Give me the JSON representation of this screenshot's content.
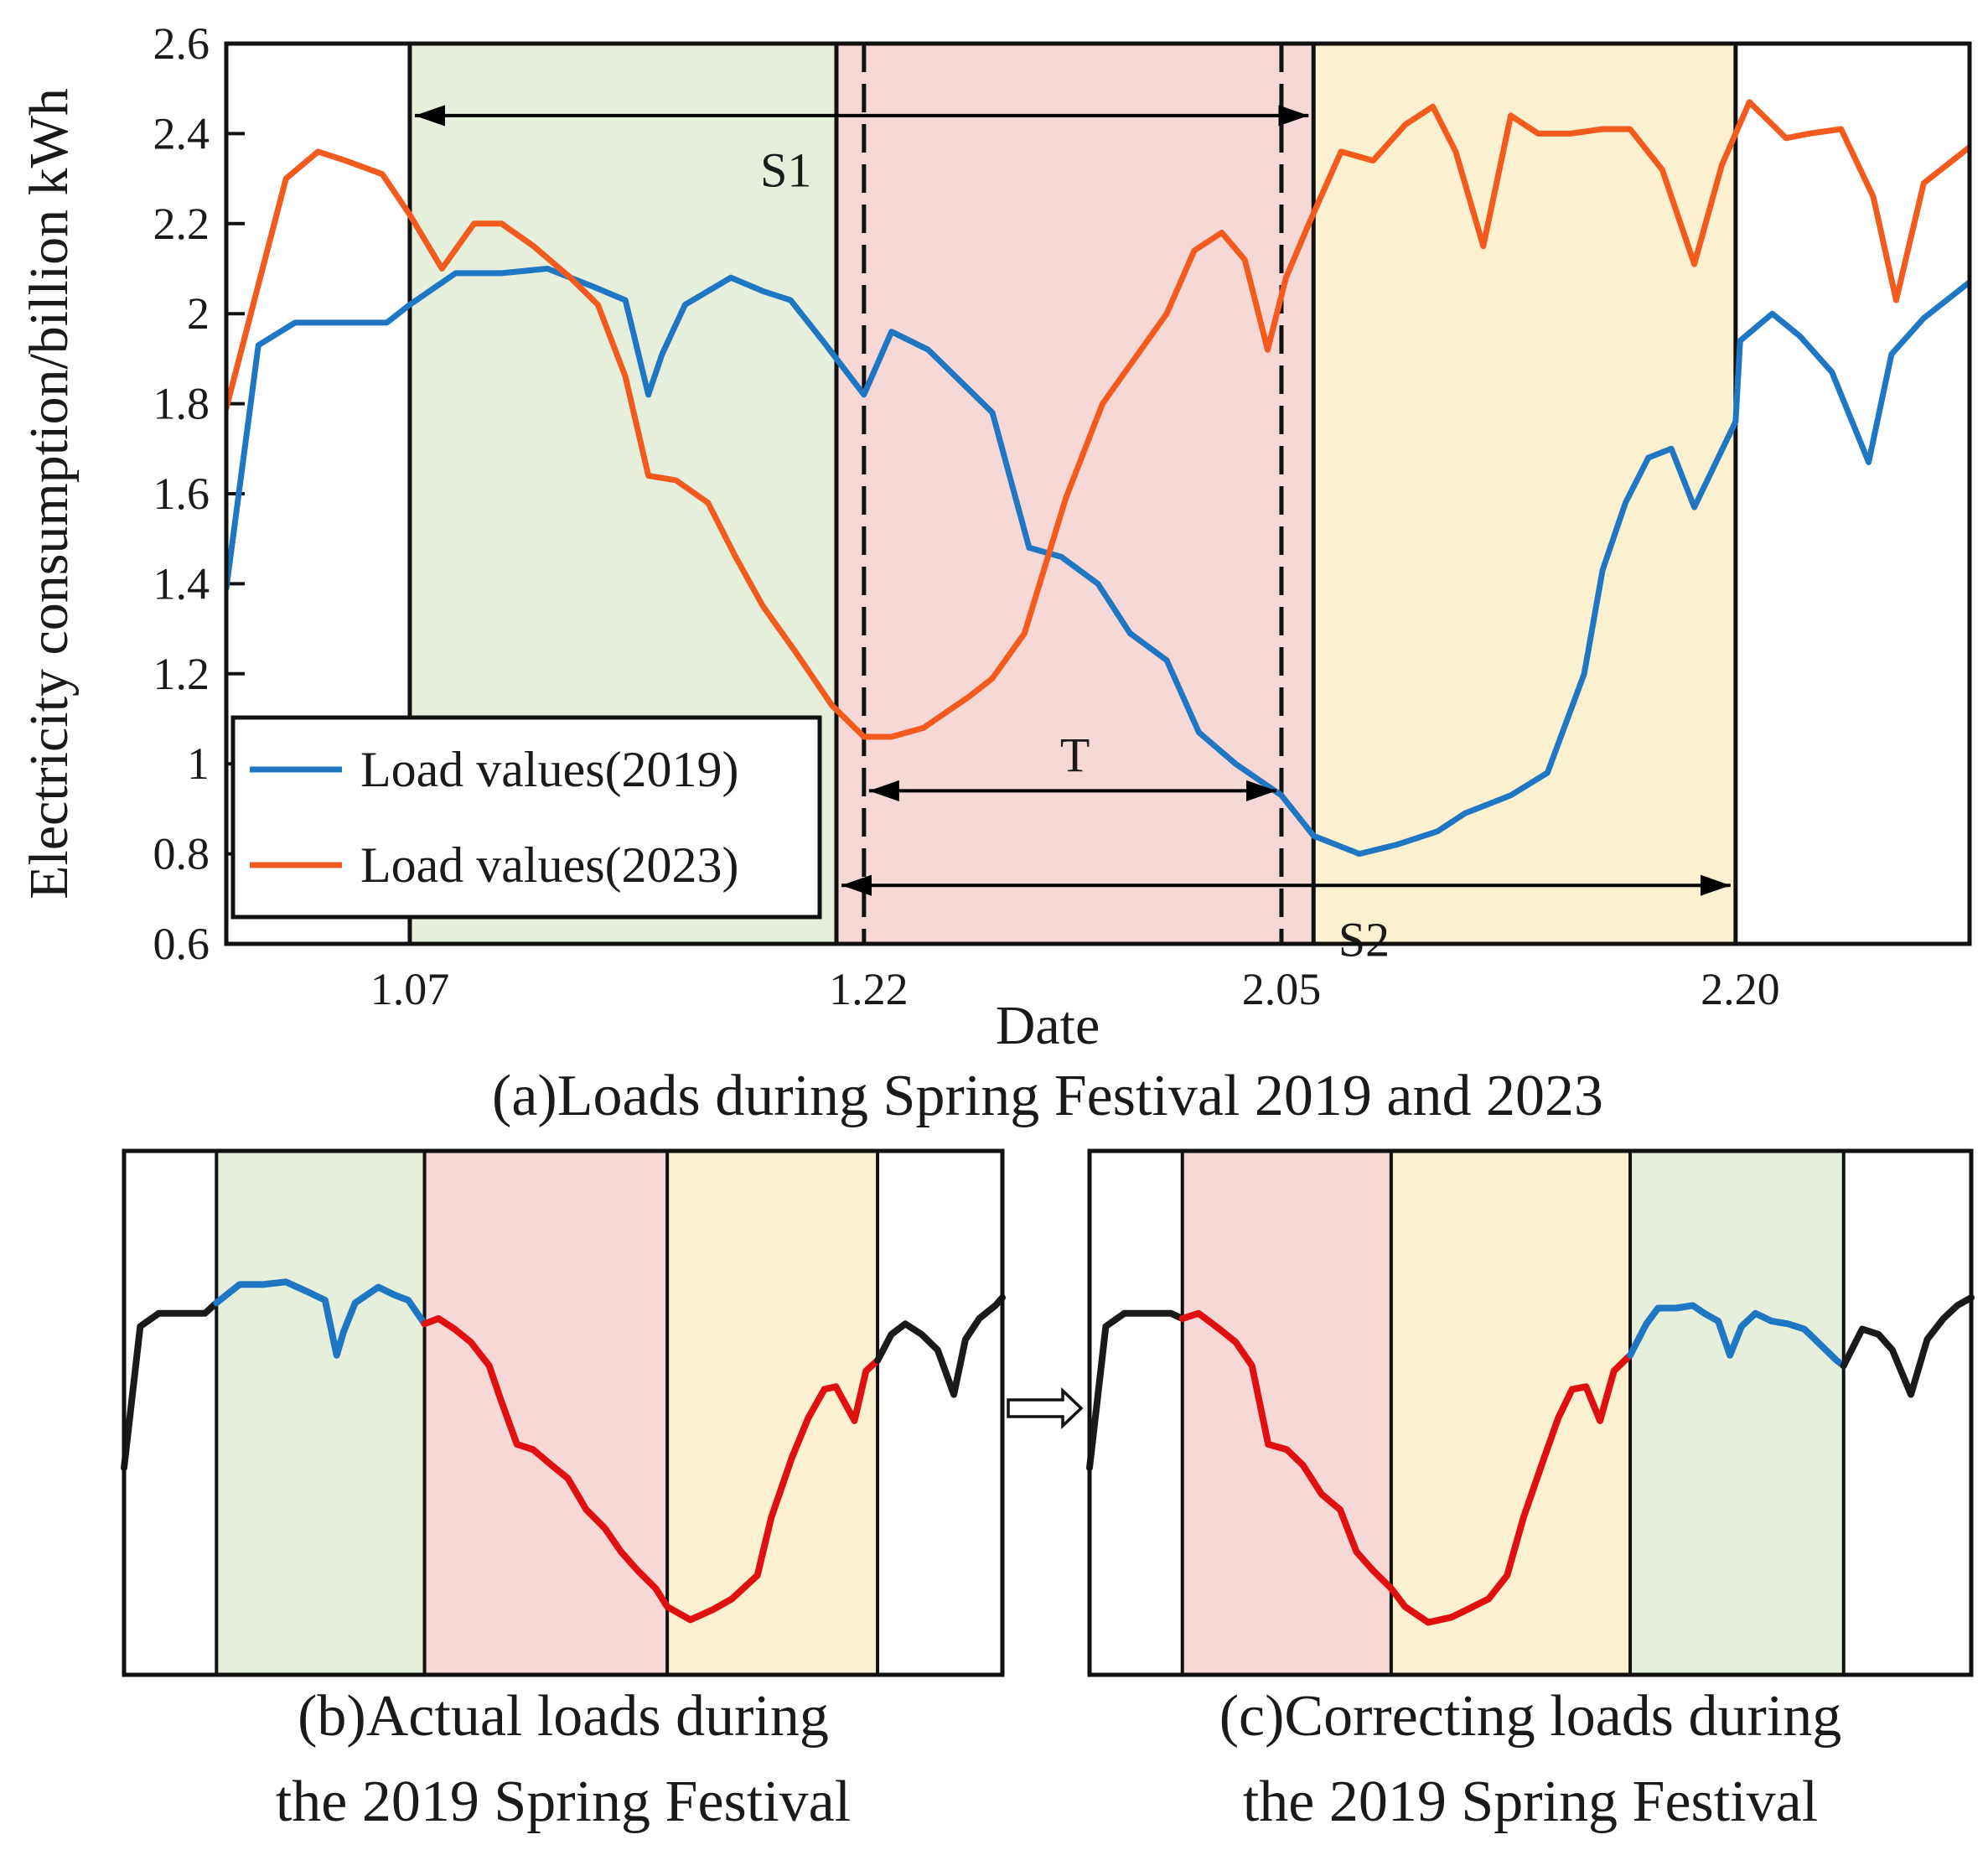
{
  "chart_data": [
    {
      "id": "a",
      "type": "line",
      "caption": "(a)Loads during Spring Festival 2019 and 2023",
      "xlabel": "Date",
      "ylabel": "Electricity consumption/billion kWh",
      "ylim": [
        0.6,
        2.6
      ],
      "yticks": [
        "0.6",
        "0.8",
        "1",
        "1.2",
        "1.4",
        "1.6",
        "1.8",
        "2",
        "2.2",
        "2.4",
        "2.6"
      ],
      "xlim": [
        0,
        38
      ],
      "xticks": [
        {
          "x": 4,
          "label": "1.07"
        },
        {
          "x": 14,
          "label": "1.22"
        },
        {
          "x": 23,
          "label": "2.05"
        },
        {
          "x": 33,
          "label": "2.20"
        }
      ],
      "bands": [
        {
          "x0": 4.0,
          "x1": 13.3,
          "color": "#e6efdc"
        },
        {
          "x0": 13.3,
          "x1": 23.7,
          "color": "#f6d8d6"
        },
        {
          "x0": 23.7,
          "x1": 32.9,
          "color": "#fbf0cf"
        }
      ],
      "solid_lines": [
        4.0,
        13.3,
        23.7,
        32.9
      ],
      "dashed_lines": [
        13.9,
        23.0
      ],
      "annotations": [
        {
          "label": "S1",
          "x0": 4.0,
          "x1": 23.7,
          "y": 2.44,
          "tx": 12.2,
          "ty": 2.32
        },
        {
          "label": "T",
          "x0": 13.9,
          "x1": 23.0,
          "y": 0.94,
          "tx": 18.5,
          "ty": 1.02
        },
        {
          "label": "S2",
          "x0": 13.3,
          "x1": 32.9,
          "y": 0.73,
          "tx": 24.8,
          "ty": 0.61
        }
      ],
      "legend": {
        "position": "bottom-left",
        "entries": [
          "Load values(2019)",
          "Load values(2023)"
        ]
      },
      "series": [
        {
          "name": "Load values(2019)",
          "color": "#1f77c4",
          "x": [
            0,
            0.7,
            1.5,
            2.5,
            3.5,
            4,
            5,
            6,
            7,
            8,
            8.7,
            9.2,
            9.5,
            10,
            11,
            11.7,
            12.3,
            13,
            13.9,
            14.5,
            15.3,
            15.8,
            16.7,
            17.5,
            18.2,
            19,
            19.7,
            20.5,
            21.2,
            22,
            23,
            23.7,
            24.7,
            25.5,
            26.4,
            27,
            28,
            28.8,
            29.6,
            30,
            30.5,
            31,
            31.5,
            32,
            32.9,
            33,
            33.7,
            34.3,
            35,
            35.8,
            36.3,
            37,
            38
          ],
          "values": [
            1.39,
            1.93,
            1.98,
            1.98,
            1.98,
            2.02,
            2.09,
            2.09,
            2.1,
            2.06,
            2.03,
            1.82,
            1.91,
            2.02,
            2.08,
            2.05,
            2.03,
            1.94,
            1.82,
            1.96,
            1.92,
            1.87,
            1.78,
            1.48,
            1.46,
            1.4,
            1.29,
            1.23,
            1.07,
            1.0,
            0.93,
            0.84,
            0.8,
            0.82,
            0.85,
            0.89,
            0.93,
            0.98,
            1.2,
            1.43,
            1.58,
            1.68,
            1.7,
            1.57,
            1.76,
            1.94,
            2.0,
            1.95,
            1.87,
            1.67,
            1.91,
            1.99,
            2.07
          ]
        },
        {
          "name": "Load values(2023)",
          "color": "#f25a1e",
          "x": [
            0,
            1.3,
            2,
            2.6,
            3.4,
            4,
            4.7,
            5.4,
            6,
            6.7,
            7.5,
            8.1,
            8.7,
            9.2,
            9.8,
            10.5,
            11.1,
            11.7,
            12.4,
            13.2,
            13.9,
            14.5,
            15.2,
            16.2,
            16.7,
            17.4,
            18.3,
            19.1,
            19.8,
            20.5,
            21.1,
            21.7,
            22.2,
            22.7,
            23.1,
            23.6,
            24.3,
            25,
            25.7,
            26.3,
            26.8,
            27.4,
            28,
            28.6,
            29.3,
            30,
            30.6,
            31.3,
            32,
            32.6,
            33.2,
            34,
            34.5,
            35.2,
            35.9,
            36.4,
            37,
            38
          ],
          "values": [
            1.79,
            2.3,
            2.36,
            2.34,
            2.31,
            2.22,
            2.1,
            2.2,
            2.2,
            2.15,
            2.08,
            2.02,
            1.86,
            1.64,
            1.63,
            1.58,
            1.46,
            1.35,
            1.25,
            1.13,
            1.06,
            1.06,
            1.08,
            1.15,
            1.19,
            1.29,
            1.59,
            1.8,
            1.9,
            2.0,
            2.14,
            2.18,
            2.12,
            1.92,
            2.08,
            2.2,
            2.36,
            2.34,
            2.42,
            2.46,
            2.36,
            2.15,
            2.44,
            2.4,
            2.4,
            2.41,
            2.41,
            2.32,
            2.11,
            2.33,
            2.47,
            2.39,
            2.4,
            2.41,
            2.26,
            2.03,
            2.29,
            2.37
          ]
        }
      ]
    },
    {
      "id": "b",
      "type": "line",
      "caption_line1": "(b)Actual loads during",
      "caption_line2": "the 2019 Spring Festival",
      "xlim": [
        0,
        38
      ],
      "ylim": [
        0.6,
        2.6
      ],
      "bands": [
        {
          "x0": 4,
          "x1": 13,
          "color": "#e6efdc"
        },
        {
          "x0": 13,
          "x1": 23.5,
          "color": "#f6d8d6"
        },
        {
          "x0": 23.5,
          "x1": 32.6,
          "color": "#fbf0cf"
        }
      ],
      "dividers": [
        4,
        13,
        23.5,
        32.6
      ],
      "segments": [
        {
          "color": "#1a1a1a",
          "x": [
            0,
            0.7,
            1.5,
            2.5,
            3.5,
            4
          ],
          "values": [
            1.39,
            1.93,
            1.98,
            1.98,
            1.98,
            2.02
          ]
        },
        {
          "color": "#1f77c4",
          "x": [
            4,
            5,
            6,
            7,
            8,
            8.7,
            9.2,
            9.5,
            10,
            11,
            11.7,
            12.3,
            13
          ],
          "values": [
            2.02,
            2.09,
            2.09,
            2.1,
            2.06,
            2.03,
            1.82,
            1.91,
            2.02,
            2.08,
            2.05,
            2.03,
            1.94
          ]
        },
        {
          "color": "#e01010",
          "x": [
            13,
            13.6,
            14.3,
            15,
            15.8,
            16.3,
            17,
            17.7,
            18.5,
            19.2,
            20,
            20.8,
            21.5,
            22.2,
            23,
            23.5,
            24.5,
            25.5,
            26.3,
            27.4,
            28,
            28.9,
            29.6,
            30.3,
            30.8,
            31.6,
            32.1,
            32.6
          ],
          "values": [
            1.94,
            1.96,
            1.92,
            1.87,
            1.78,
            1.65,
            1.48,
            1.46,
            1.4,
            1.35,
            1.23,
            1.16,
            1.07,
            1.0,
            0.93,
            0.86,
            0.81,
            0.85,
            0.89,
            0.98,
            1.2,
            1.43,
            1.58,
            1.69,
            1.7,
            1.57,
            1.76,
            1.8
          ]
        },
        {
          "color": "#1a1a1a",
          "x": [
            32.6,
            33.2,
            33.8,
            34.5,
            35.2,
            35.9,
            36.4,
            37,
            37.7,
            38
          ],
          "values": [
            1.8,
            1.9,
            1.94,
            1.9,
            1.84,
            1.67,
            1.88,
            1.96,
            2.01,
            2.04
          ]
        }
      ]
    },
    {
      "id": "c",
      "type": "line",
      "caption_line1": "(c)Correcting loads during",
      "caption_line2": "the 2019 Spring Festival",
      "xlim": [
        0,
        38
      ],
      "ylim": [
        0.6,
        2.6
      ],
      "bands": [
        {
          "x0": 4,
          "x1": 13,
          "color": "#f6d8d6"
        },
        {
          "x0": 13,
          "x1": 23.3,
          "color": "#fbf0cf"
        },
        {
          "x0": 23.3,
          "x1": 32.5,
          "color": "#e6efdc"
        }
      ],
      "dividers": [
        4,
        13,
        23.3,
        32.5
      ],
      "segments": [
        {
          "color": "#1a1a1a",
          "x": [
            0,
            0.7,
            1.5,
            2.5,
            3.5,
            4
          ],
          "values": [
            1.39,
            1.93,
            1.98,
            1.98,
            1.98,
            1.96
          ]
        },
        {
          "color": "#e01010",
          "x": [
            4,
            4.7,
            5.6,
            6.3,
            7,
            7.7,
            8.5,
            9.2,
            10,
            10.8,
            11.5,
            12.2,
            13,
            13.6,
            14.6,
            15.6,
            16.3,
            17.2,
            18,
            18.7,
            19.6,
            20.2,
            20.8,
            21.4,
            22,
            22.6,
            23.3
          ],
          "values": [
            1.96,
            1.98,
            1.92,
            1.87,
            1.78,
            1.48,
            1.46,
            1.4,
            1.29,
            1.23,
            1.07,
            1.0,
            0.93,
            0.86,
            0.8,
            0.82,
            0.85,
            0.89,
            0.98,
            1.2,
            1.43,
            1.58,
            1.69,
            1.7,
            1.57,
            1.76,
            1.82
          ]
        },
        {
          "color": "#1f77c4",
          "x": [
            23.3,
            24,
            24.5,
            25.3,
            26,
            26.5,
            27.1,
            27.6,
            28.1,
            28.7,
            29.4,
            30.1,
            30.8,
            31.5,
            32.2,
            32.5
          ],
          "values": [
            1.82,
            1.94,
            2.0,
            2.0,
            2.01,
            1.98,
            1.95,
            1.82,
            1.93,
            1.98,
            1.95,
            1.94,
            1.92,
            1.86,
            1.8,
            1.78
          ]
        },
        {
          "color": "#1a1a1a",
          "x": [
            32.5,
            33.3,
            34,
            34.6,
            35.4,
            36.1,
            36.8,
            37.4,
            38
          ],
          "values": [
            1.78,
            1.92,
            1.9,
            1.84,
            1.67,
            1.88,
            1.96,
            2.01,
            2.04
          ]
        }
      ]
    }
  ]
}
